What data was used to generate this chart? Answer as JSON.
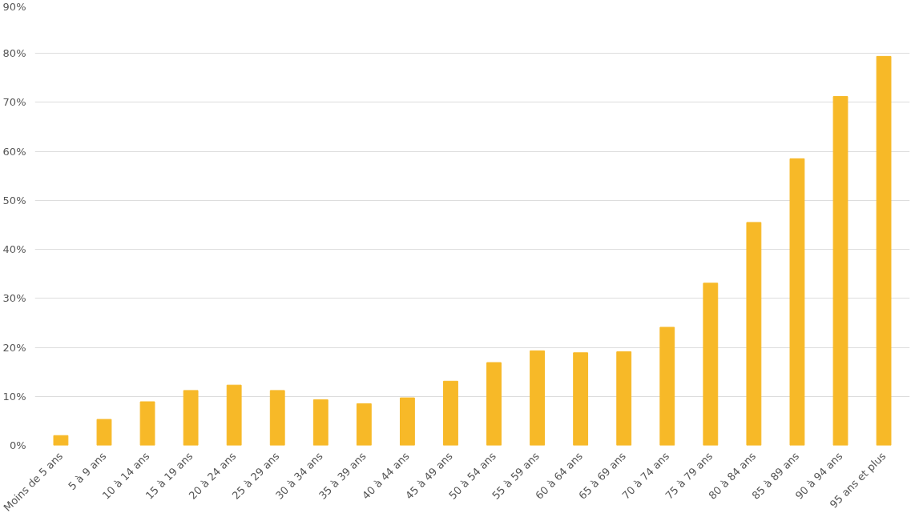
{
  "chart_data": {
    "type": "bar",
    "categories": [
      "Moins de 5 ans",
      "5 à 9 ans",
      "10 à 14 ans",
      "15 à 19 ans",
      "20 à 24 ans",
      "25 à 29 ans",
      "30 à 34 ans",
      "35 à 39 ans",
      "40 à 44 ans",
      "45 à 49 ans",
      "50 à 54 ans",
      "55 à 59 ans",
      "60 à 64 ans",
      "65 à 69 ans",
      "70 à 74 ans",
      "75 à 79 ans",
      "80 à 84 ans",
      "85 à 89 ans",
      "90 à 94 ans",
      "95 ans et plus"
    ],
    "values": [
      2,
      5.3,
      8.9,
      11.2,
      12.3,
      11.2,
      9.3,
      8.5,
      9.7,
      13.1,
      16.9,
      19.3,
      18.9,
      19.1,
      24.1,
      33.1,
      45.5,
      58.5,
      71.2,
      79.4
    ],
    "color": "#f7b928",
    "ylim": [
      0,
      90
    ],
    "yticks": [
      {
        "value": 0,
        "label": "0%"
      },
      {
        "value": 10,
        "label": "10%"
      },
      {
        "value": 20,
        "label": "20%"
      },
      {
        "value": 30,
        "label": "30%"
      },
      {
        "value": 40,
        "label": "40%"
      },
      {
        "value": 50,
        "label": "50%"
      },
      {
        "value": 60,
        "label": "60%"
      },
      {
        "value": 70,
        "label": "70%"
      },
      {
        "value": 80,
        "label": "80%"
      },
      {
        "value": 90,
        "label": "90%"
      }
    ],
    "grid": "y"
  }
}
